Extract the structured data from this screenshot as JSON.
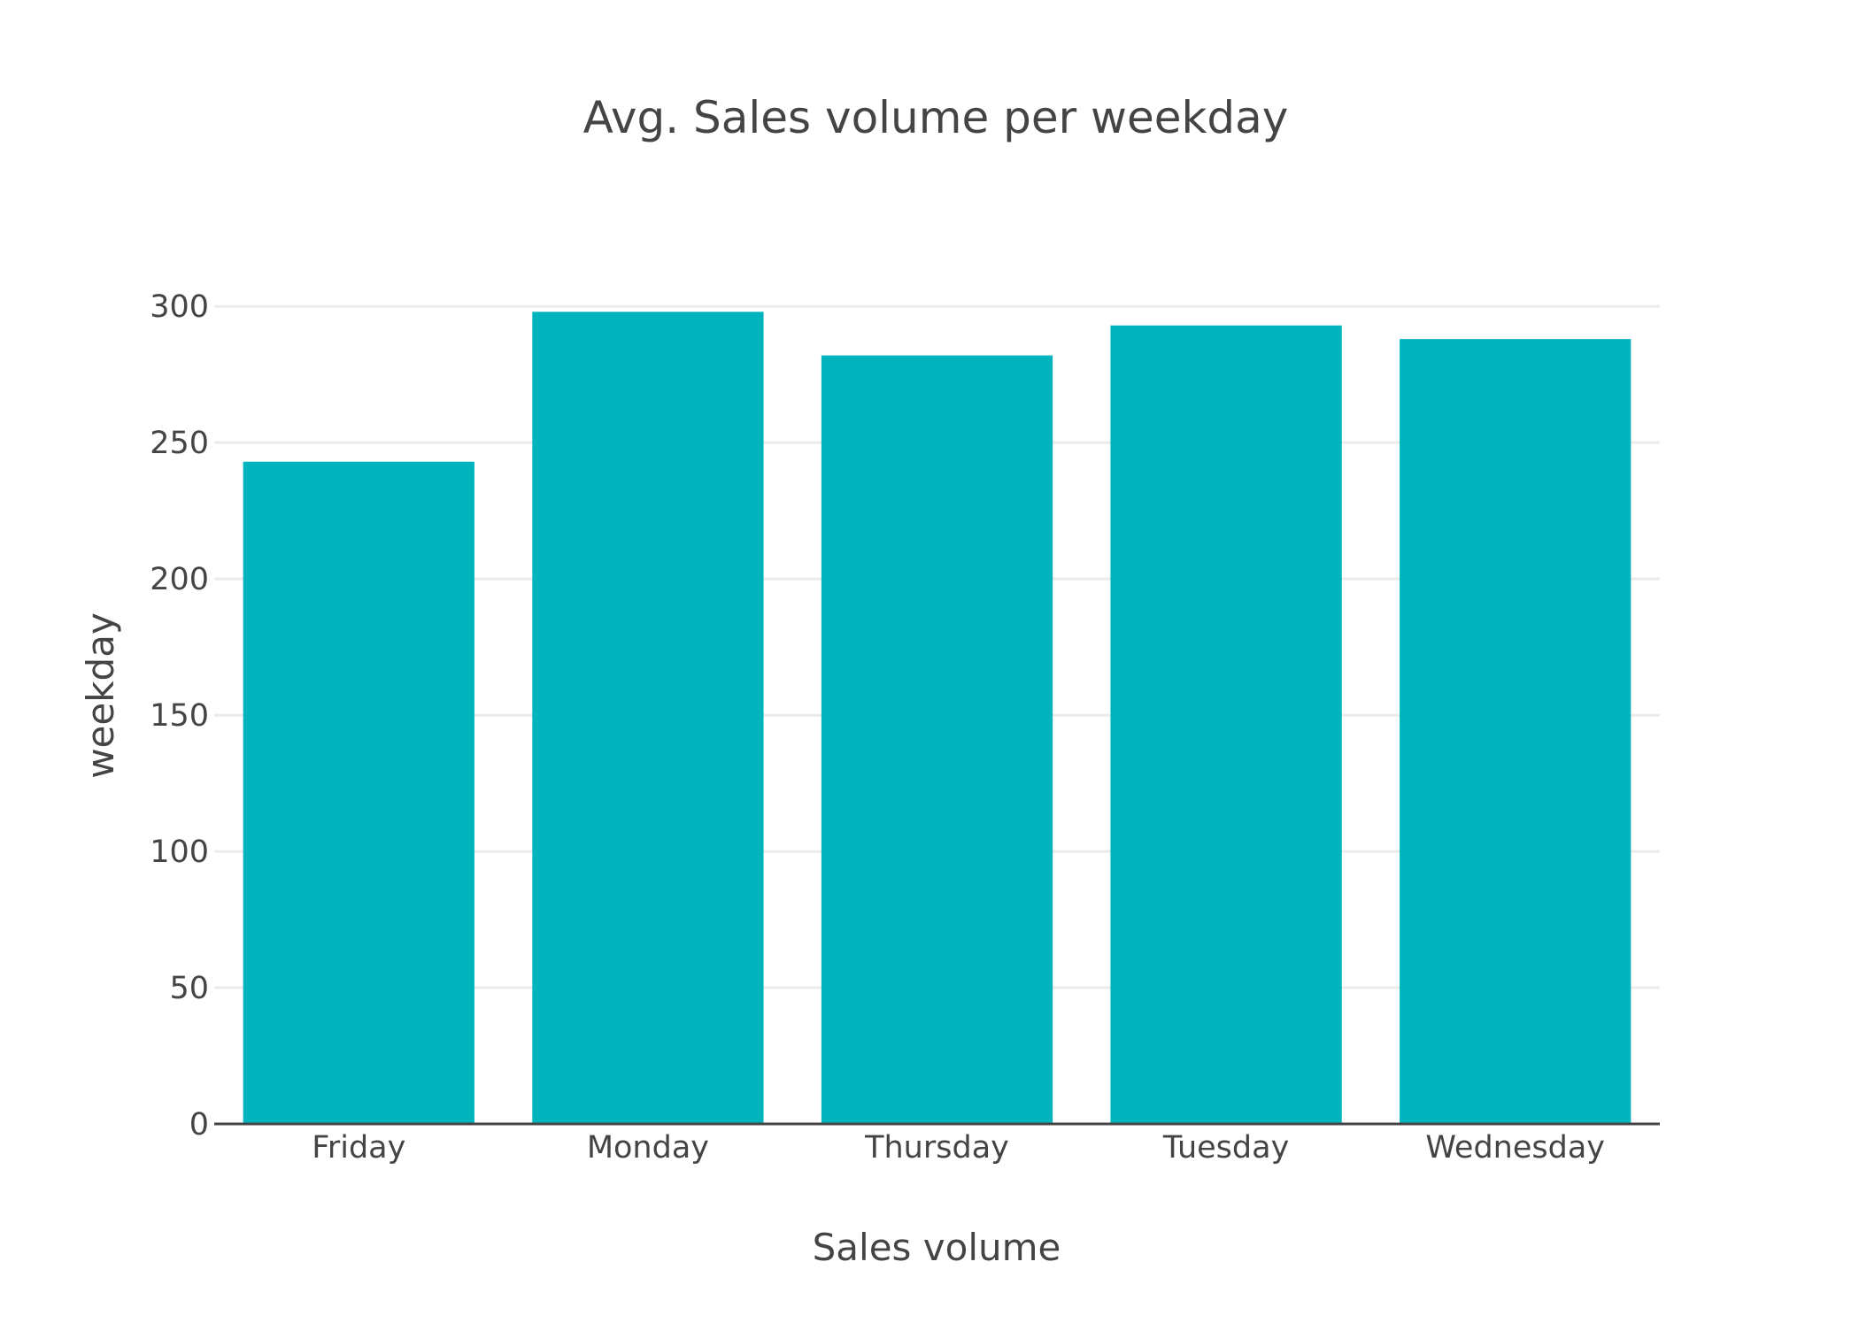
{
  "chart_data": {
    "type": "bar",
    "title": "Avg. Sales volume per weekday",
    "xlabel": "Sales volume",
    "ylabel": "weekday",
    "categories": [
      "Friday",
      "Monday",
      "Thursday",
      "Tuesday",
      "Wednesday"
    ],
    "values": [
      243,
      298,
      282,
      293,
      288
    ],
    "ylim": [
      0,
      315
    ],
    "yticks": [
      0,
      50,
      100,
      150,
      200,
      250,
      300
    ],
    "grid": true,
    "legend": "none",
    "colors": {
      "bar": "#00b4be",
      "grid": "#ebebeb",
      "text": "#444444",
      "axis": "#444444"
    }
  }
}
